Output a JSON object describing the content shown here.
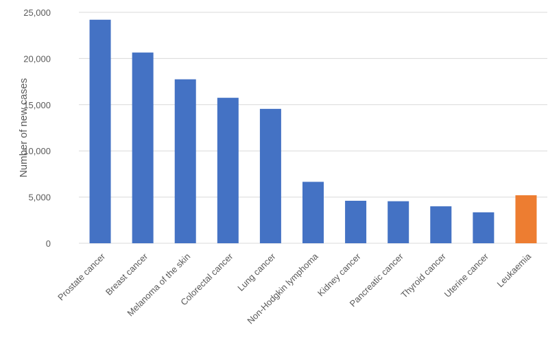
{
  "chart_data": {
    "type": "bar",
    "title": "",
    "xlabel": "",
    "ylabel": "Number of new cases",
    "ylim": [
      0,
      25000
    ],
    "yticks": [
      "0",
      "5,000",
      "10,000",
      "15,000",
      "20,000",
      "25,000"
    ],
    "ytick_values": [
      0,
      5000,
      10000,
      15000,
      20000,
      25000
    ],
    "grid": true,
    "legend": "none",
    "categories": [
      "Prostate cancer",
      "Breast cancer",
      "Melanoma of the skin",
      "Colorectal cancer",
      "Lung cancer",
      "Non-Hodgkin lymphoma",
      "Kidney cancer",
      "Pancreatic cancer",
      "Thyroid cancer",
      "Uterine cancer",
      "Leukaemia"
    ],
    "values": [
      24200,
      20650,
      17750,
      15750,
      14550,
      6650,
      4600,
      4550,
      4000,
      3350,
      5200
    ],
    "colors": {
      "default": "#4472c4",
      "highlight": "#ed7d31",
      "highlight_category": "Leukaemia"
    }
  }
}
